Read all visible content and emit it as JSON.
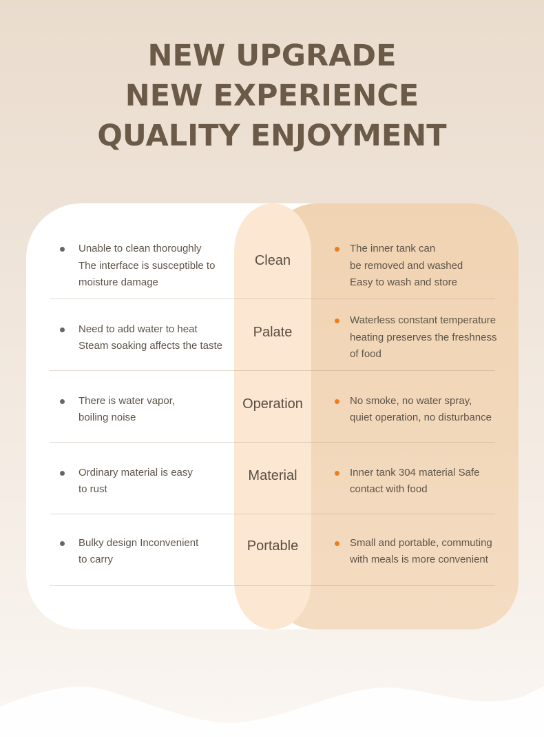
{
  "headline": [
    "NEW UPGRADE",
    "NEW EXPERIENCE",
    "QUALITY ENJOYMENT"
  ],
  "colors": {
    "title": "#6b5a48",
    "bullet_left": "#6b6560",
    "bullet_right": "#f07d1a",
    "middle_column": "#fbe7d2",
    "right_panel": "#f0d3b2"
  },
  "rows": [
    {
      "category": "Clean",
      "left": [
        "Unable to clean thoroughly",
        "The interface is susceptible to",
        "moisture damage"
      ],
      "right": [
        "The inner tank can",
        "be removed and washed",
        "Easy to wash and store"
      ]
    },
    {
      "category": "Palate",
      "left": [
        "Need to add water to heat",
        "Steam soaking affects the taste"
      ],
      "right": [
        "Waterless constant temperature",
        "heating preserves the freshness",
        "of food"
      ]
    },
    {
      "category": "Operation",
      "left": [
        "There is water vapor,",
        "boiling noise"
      ],
      "right": [
        "No smoke, no water spray,",
        "quiet operation, no disturbance"
      ]
    },
    {
      "category": "Material",
      "left": [
        "Ordinary material is easy",
        "to rust"
      ],
      "right": [
        "Inner tank 304 material Safe",
        "contact with food"
      ]
    },
    {
      "category": "Portable",
      "left": [
        "Bulky design Inconvenient",
        "to carry"
      ],
      "right": [
        "Small and portable, commuting",
        "with meals is more convenient"
      ]
    }
  ]
}
